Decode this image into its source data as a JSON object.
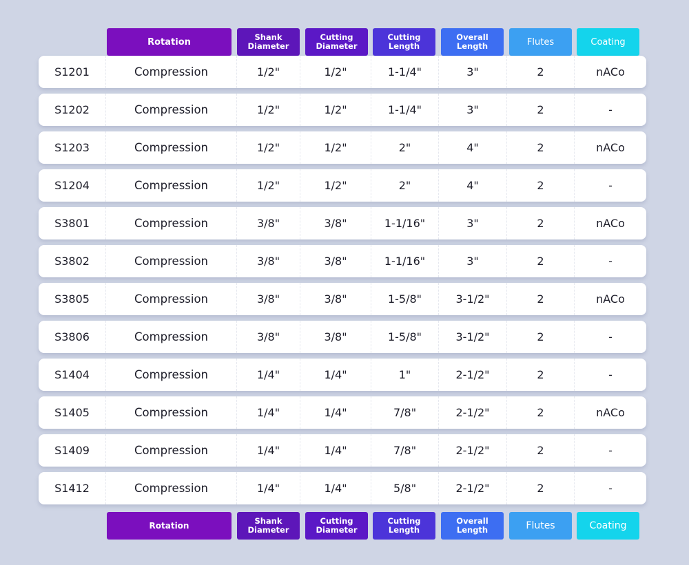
{
  "colors": {
    "background": "#cfd5e5",
    "rotation": "#7b0fbe",
    "shank_diameter": "#5d16b9",
    "cutting_diameter": "#5b18c6",
    "cutting_length": "#4c34d9",
    "overall_length": "#3d6ef2",
    "flutes": "#3ca0f2",
    "coating": "#14d4ec"
  },
  "headers": {
    "rotation": [
      "Rotation"
    ],
    "shank_diameter": [
      "Shank",
      "Diameter"
    ],
    "cutting_diameter": [
      "Cutting",
      "Diameter"
    ],
    "cutting_length": [
      "Cutting",
      "Length"
    ],
    "overall_length": [
      "Overall",
      "Length"
    ],
    "flutes": [
      "Flutes"
    ],
    "coating": [
      "Coating"
    ]
  },
  "rows": [
    {
      "sku": "S1201",
      "rotation": "Compression",
      "shank": "1/2\"",
      "cut_dia": "1/2\"",
      "cut_len": "1-1/4\"",
      "overall": "3\"",
      "flutes": "2",
      "coating": "nACo"
    },
    {
      "sku": "S1202",
      "rotation": "Compression",
      "shank": "1/2\"",
      "cut_dia": "1/2\"",
      "cut_len": "1-1/4\"",
      "overall": "3\"",
      "flutes": "2",
      "coating": "-"
    },
    {
      "sku": "S1203",
      "rotation": "Compression",
      "shank": "1/2\"",
      "cut_dia": "1/2\"",
      "cut_len": "2\"",
      "overall": "4\"",
      "flutes": "2",
      "coating": "nACo"
    },
    {
      "sku": "S1204",
      "rotation": "Compression",
      "shank": "1/2\"",
      "cut_dia": "1/2\"",
      "cut_len": "2\"",
      "overall": "4\"",
      "flutes": "2",
      "coating": "-"
    },
    {
      "sku": "S3801",
      "rotation": "Compression",
      "shank": "3/8\"",
      "cut_dia": "3/8\"",
      "cut_len": "1-1/16\"",
      "overall": "3\"",
      "flutes": "2",
      "coating": "nACo"
    },
    {
      "sku": "S3802",
      "rotation": "Compression",
      "shank": "3/8\"",
      "cut_dia": "3/8\"",
      "cut_len": "1-1/16\"",
      "overall": "3\"",
      "flutes": "2",
      "coating": "-"
    },
    {
      "sku": "S3805",
      "rotation": "Compression",
      "shank": "3/8\"",
      "cut_dia": "3/8\"",
      "cut_len": "1-5/8\"",
      "overall": "3-1/2\"",
      "flutes": "2",
      "coating": "nACo"
    },
    {
      "sku": "S3806",
      "rotation": "Compression",
      "shank": "3/8\"",
      "cut_dia": "3/8\"",
      "cut_len": "1-5/8\"",
      "overall": "3-1/2\"",
      "flutes": "2",
      "coating": "-"
    },
    {
      "sku": "S1404",
      "rotation": "Compression",
      "shank": "1/4\"",
      "cut_dia": "1/4\"",
      "cut_len": "1\"",
      "overall": "2-1/2\"",
      "flutes": "2",
      "coating": "-"
    },
    {
      "sku": "S1405",
      "rotation": "Compression",
      "shank": "1/4\"",
      "cut_dia": "1/4\"",
      "cut_len": "7/8\"",
      "overall": "2-1/2\"",
      "flutes": "2",
      "coating": "nACo"
    },
    {
      "sku": "S1409",
      "rotation": "Compression",
      "shank": "1/4\"",
      "cut_dia": "1/4\"",
      "cut_len": "7/8\"",
      "overall": "2-1/2\"",
      "flutes": "2",
      "coating": "-"
    },
    {
      "sku": "S1412",
      "rotation": "Compression",
      "shank": "1/4\"",
      "cut_dia": "1/4\"",
      "cut_len": "5/8\"",
      "overall": "2-1/2\"",
      "flutes": "2",
      "coating": "-"
    }
  ]
}
